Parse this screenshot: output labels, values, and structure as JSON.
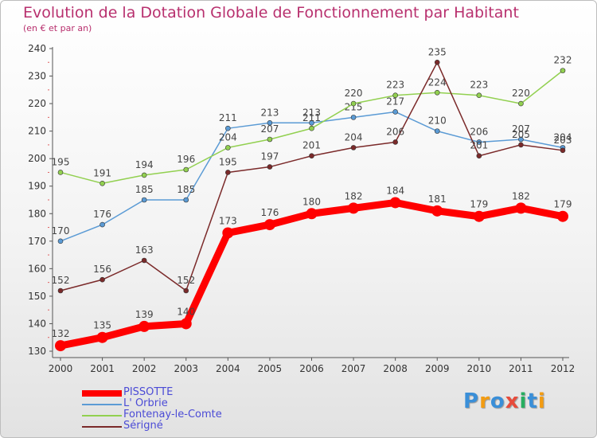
{
  "chart_data": {
    "type": "line",
    "title": "Evolution de la Dotation Globale de Fonctionnement par Habitant",
    "subtitle": "(en € et par an)",
    "x": [
      "2000",
      "2001",
      "2002",
      "2003",
      "2004",
      "2005",
      "2006",
      "2007",
      "2008",
      "2009",
      "2010",
      "2011",
      "2012"
    ],
    "ylim": [
      130,
      240
    ],
    "yticks": [
      130,
      140,
      150,
      160,
      170,
      180,
      190,
      200,
      210,
      220,
      230,
      240
    ],
    "grid": false,
    "legend_position": "bottom-left",
    "series": [
      {
        "name": "L' Orbrie",
        "color": "#5b9bd5",
        "values": [
          170,
          176,
          185,
          185,
          211,
          213,
          213,
          215,
          217,
          210,
          206,
          207,
          204
        ]
      },
      {
        "name": "Fontenay-le-Comte",
        "color": "#92d050",
        "values": [
          195,
          191,
          194,
          196,
          204,
          207,
          211,
          220,
          223,
          224,
          223,
          220,
          232
        ]
      },
      {
        "name": "Sérigné",
        "color": "#7b2a2a",
        "values": [
          152,
          156,
          163,
          152,
          195,
          197,
          201,
          204,
          206,
          235,
          201,
          205,
          203
        ]
      },
      {
        "name": "PISSOTTE",
        "color": "#ff0000",
        "values": [
          132,
          135,
          139,
          140,
          173,
          176,
          180,
          182,
          184,
          181,
          179,
          182,
          179
        ]
      }
    ]
  },
  "legend": [
    {
      "label": "PISSOTTE",
      "color": "#ff0000",
      "thick": true
    },
    {
      "label": "L' Orbrie",
      "color": "#5b9bd5",
      "thick": false
    },
    {
      "label": "Fontenay-le-Comte",
      "color": "#92d050",
      "thick": false
    },
    {
      "label": "Sérigné",
      "color": "#7b2a2a",
      "thick": false
    }
  ],
  "logo": {
    "text": "Proxiti",
    "colors": [
      "#3a8fd8",
      "#f39c12",
      "#3a8fd8",
      "#e74c3c",
      "#27ae60",
      "#3a8fd8",
      "#f39c12"
    ]
  }
}
